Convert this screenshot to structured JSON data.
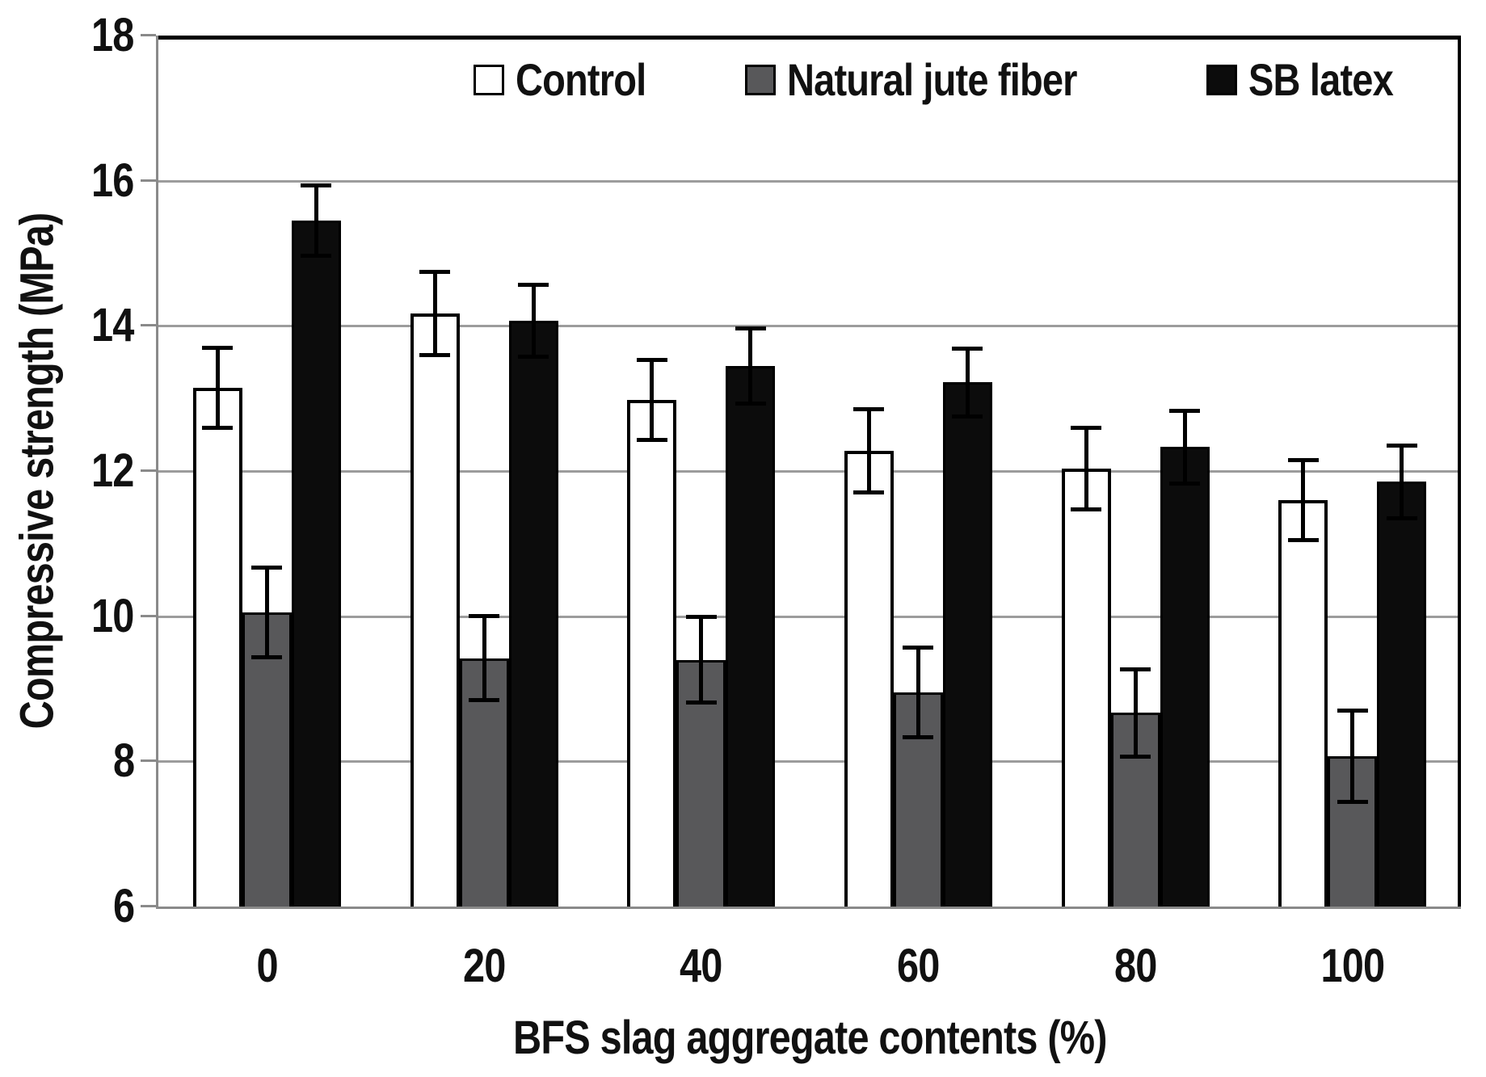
{
  "chart_data": {
    "type": "bar",
    "title": "",
    "xlabel": "BFS slag aggregate contents (%)",
    "ylabel": "Compressive strength (MPa)",
    "categories": [
      "0",
      "20",
      "40",
      "60",
      "80",
      "100"
    ],
    "yticks": [
      18,
      16,
      14,
      12,
      10,
      8,
      6
    ],
    "ylim": [
      6,
      18
    ],
    "grid": "horizontal-gray-lines",
    "legend_position": "top-inside",
    "error_bars": true,
    "series": [
      {
        "name": "Control",
        "fill": "#ffffff",
        "border": "#000000",
        "values": [
          13.15,
          14.17,
          12.98,
          12.28,
          12.03,
          11.6
        ],
        "errors": [
          0.55,
          0.57,
          0.55,
          0.57,
          0.56,
          0.55
        ]
      },
      {
        "name": "Natural jute fiber",
        "fill": "#58585a",
        "border": "#000000",
        "values": [
          10.05,
          9.42,
          9.4,
          8.95,
          8.67,
          8.07
        ],
        "errors": [
          0.62,
          0.58,
          0.59,
          0.62,
          0.6,
          0.63
        ]
      },
      {
        "name": "SB latex",
        "fill": "#0c0c0c",
        "border": "#000000",
        "values": [
          15.45,
          14.07,
          13.45,
          13.22,
          12.33,
          11.85
        ],
        "errors": [
          0.48,
          0.5,
          0.52,
          0.47,
          0.5,
          0.5
        ]
      }
    ],
    "colors": {
      "gridline": "#9c9c9c",
      "axis_line": "#8a8a8a",
      "frame": "#000000",
      "error_bar": "#000000",
      "text": "#111111"
    }
  }
}
